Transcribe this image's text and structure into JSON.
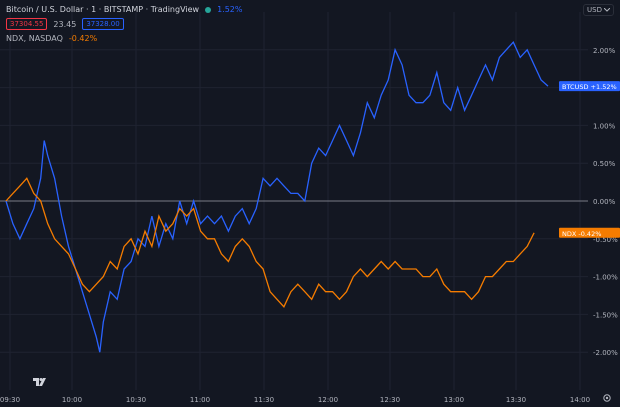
{
  "header": {
    "title": "Bitcoin / U.S. Dollar · 1 · BITSTAMP · TradingView",
    "change_pct": "1.52%",
    "bid": "37304.55",
    "spread": "23.45",
    "ask": "37328.00",
    "compare_symbol": "NDX, NASDAQ",
    "compare_change": "-0.42%"
  },
  "currency": "USD",
  "icons": [
    "green-dot-icon",
    "settings-icon",
    "tradingview-logo-icon",
    "chevron-down-icon"
  ],
  "colors": {
    "background": "#131722",
    "btc": "#2962ff",
    "ndx": "#f57c00",
    "grid": "#1f2331",
    "zero_line": "#787b86",
    "text": "#b2b5be",
    "bid": "#f23645",
    "ask": "#2962ff",
    "status_dot": "#26a69a"
  },
  "chart_data": {
    "type": "line",
    "y_unit": "%",
    "ylim": [
      -2.5,
      2.5
    ],
    "x_ticks": [
      "09:30",
      "10:00",
      "10:30",
      "11:00",
      "11:30",
      "12:00",
      "12:30",
      "13:00",
      "13:30",
      "14:00"
    ],
    "y_ticks": [
      "2.00%",
      "1.50%",
      "1.00%",
      "0.50%",
      "0.00%",
      "-0.50%",
      "-1.00%",
      "-1.50%",
      "-2.00%"
    ],
    "series": [
      {
        "name": "BTCUSD",
        "label": "BTCUSD",
        "last_label": "+1.52%",
        "color": "#2962ff",
        "points": [
          [
            0,
            0
          ],
          [
            2,
            -0.3
          ],
          [
            4,
            -0.5
          ],
          [
            6,
            -0.3
          ],
          [
            8,
            -0.1
          ],
          [
            10,
            0.3
          ],
          [
            11,
            0.8
          ],
          [
            12,
            0.6
          ],
          [
            14,
            0.3
          ],
          [
            16,
            -0.2
          ],
          [
            18,
            -0.6
          ],
          [
            20,
            -0.9
          ],
          [
            22,
            -1.2
          ],
          [
            24,
            -1.5
          ],
          [
            26,
            -1.8
          ],
          [
            27,
            -2.0
          ],
          [
            28,
            -1.6
          ],
          [
            30,
            -1.2
          ],
          [
            32,
            -1.3
          ],
          [
            34,
            -0.9
          ],
          [
            36,
            -0.8
          ],
          [
            38,
            -0.5
          ],
          [
            40,
            -0.6
          ],
          [
            42,
            -0.2
          ],
          [
            44,
            -0.6
          ],
          [
            46,
            -0.3
          ],
          [
            48,
            -0.5
          ],
          [
            50,
            0.0
          ],
          [
            52,
            -0.3
          ],
          [
            54,
            0.0
          ],
          [
            56,
            -0.3
          ],
          [
            58,
            -0.2
          ],
          [
            60,
            -0.3
          ],
          [
            62,
            -0.2
          ],
          [
            64,
            -0.4
          ],
          [
            66,
            -0.2
          ],
          [
            68,
            -0.1
          ],
          [
            70,
            -0.3
          ],
          [
            72,
            -0.1
          ],
          [
            74,
            0.3
          ],
          [
            76,
            0.2
          ],
          [
            78,
            0.3
          ],
          [
            80,
            0.2
          ],
          [
            82,
            0.1
          ],
          [
            84,
            0.1
          ],
          [
            86,
            0.0
          ],
          [
            88,
            0.5
          ],
          [
            90,
            0.7
          ],
          [
            92,
            0.6
          ],
          [
            94,
            0.8
          ],
          [
            96,
            1.0
          ],
          [
            98,
            0.8
          ],
          [
            100,
            0.6
          ],
          [
            102,
            0.9
          ],
          [
            104,
            1.3
          ],
          [
            106,
            1.1
          ],
          [
            108,
            1.4
          ],
          [
            110,
            1.6
          ],
          [
            112,
            2.0
          ],
          [
            114,
            1.8
          ],
          [
            116,
            1.4
          ],
          [
            118,
            1.3
          ],
          [
            120,
            1.3
          ],
          [
            122,
            1.4
          ],
          [
            124,
            1.7
          ],
          [
            126,
            1.3
          ],
          [
            128,
            1.2
          ],
          [
            130,
            1.5
          ],
          [
            132,
            1.2
          ],
          [
            134,
            1.4
          ],
          [
            136,
            1.6
          ],
          [
            138,
            1.8
          ],
          [
            140,
            1.6
          ],
          [
            142,
            1.9
          ],
          [
            144,
            2.0
          ],
          [
            146,
            2.1
          ],
          [
            148,
            1.9
          ],
          [
            150,
            2.0
          ],
          [
            152,
            1.8
          ],
          [
            154,
            1.6
          ],
          [
            156,
            1.52
          ]
        ]
      },
      {
        "name": "NDX",
        "label": "NDX",
        "last_label": "-0.42%",
        "color": "#f57c00",
        "points": [
          [
            0,
            0
          ],
          [
            2,
            0.1
          ],
          [
            4,
            0.2
          ],
          [
            6,
            0.3
          ],
          [
            8,
            0.1
          ],
          [
            10,
            0.0
          ],
          [
            12,
            -0.3
          ],
          [
            14,
            -0.5
          ],
          [
            16,
            -0.6
          ],
          [
            18,
            -0.7
          ],
          [
            20,
            -0.9
          ],
          [
            22,
            -1.1
          ],
          [
            24,
            -1.2
          ],
          [
            26,
            -1.1
          ],
          [
            28,
            -1.0
          ],
          [
            30,
            -0.8
          ],
          [
            32,
            -0.9
          ],
          [
            34,
            -0.6
          ],
          [
            36,
            -0.5
          ],
          [
            38,
            -0.7
          ],
          [
            40,
            -0.4
          ],
          [
            42,
            -0.6
          ],
          [
            44,
            -0.2
          ],
          [
            46,
            -0.4
          ],
          [
            48,
            -0.3
          ],
          [
            50,
            -0.1
          ],
          [
            52,
            -0.2
          ],
          [
            54,
            -0.1
          ],
          [
            56,
            -0.4
          ],
          [
            58,
            -0.5
          ],
          [
            60,
            -0.5
          ],
          [
            62,
            -0.7
          ],
          [
            64,
            -0.8
          ],
          [
            66,
            -0.6
          ],
          [
            68,
            -0.5
          ],
          [
            70,
            -0.6
          ],
          [
            72,
            -0.8
          ],
          [
            74,
            -0.9
          ],
          [
            76,
            -1.2
          ],
          [
            78,
            -1.3
          ],
          [
            80,
            -1.4
          ],
          [
            82,
            -1.2
          ],
          [
            84,
            -1.1
          ],
          [
            86,
            -1.2
          ],
          [
            88,
            -1.3
          ],
          [
            90,
            -1.1
          ],
          [
            92,
            -1.2
          ],
          [
            94,
            -1.2
          ],
          [
            96,
            -1.3
          ],
          [
            98,
            -1.2
          ],
          [
            100,
            -1.0
          ],
          [
            102,
            -0.9
          ],
          [
            104,
            -1.0
          ],
          [
            106,
            -0.9
          ],
          [
            108,
            -0.8
          ],
          [
            110,
            -0.9
          ],
          [
            112,
            -0.8
          ],
          [
            114,
            -0.9
          ],
          [
            116,
            -0.9
          ],
          [
            118,
            -0.9
          ],
          [
            120,
            -1.0
          ],
          [
            122,
            -1.0
          ],
          [
            124,
            -0.9
          ],
          [
            126,
            -1.1
          ],
          [
            128,
            -1.2
          ],
          [
            130,
            -1.2
          ],
          [
            132,
            -1.2
          ],
          [
            134,
            -1.3
          ],
          [
            136,
            -1.2
          ],
          [
            138,
            -1.0
          ],
          [
            140,
            -1.0
          ],
          [
            142,
            -0.9
          ],
          [
            144,
            -0.8
          ],
          [
            146,
            -0.8
          ],
          [
            148,
            -0.7
          ],
          [
            150,
            -0.6
          ],
          [
            152,
            -0.42
          ]
        ]
      }
    ]
  }
}
